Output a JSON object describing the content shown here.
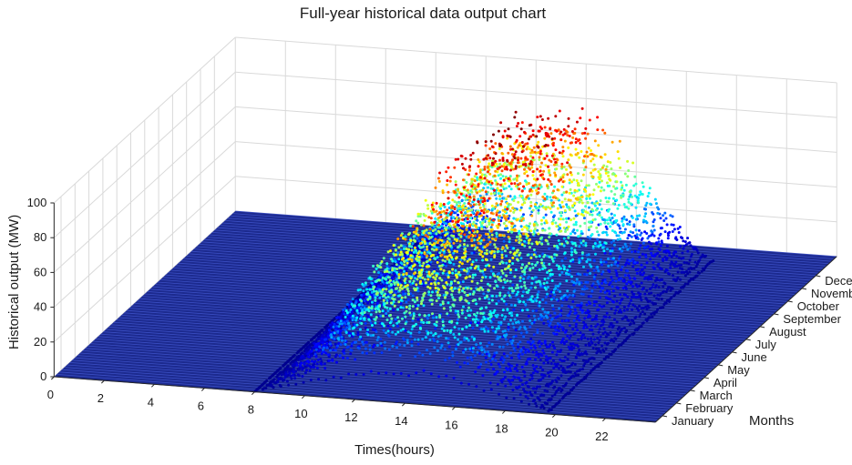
{
  "chart_data": {
    "type": "scatter",
    "title": "Full-year historical data output chart",
    "xlabel": "Times(hours)",
    "ylabel": "Months",
    "zlabel": "Historical output (MW)",
    "x_ticks": [
      "0",
      "2",
      "4",
      "6",
      "8",
      "10",
      "12",
      "14",
      "16",
      "18",
      "20",
      "22"
    ],
    "y_ticks": [
      "January",
      "February",
      "March",
      "April",
      "May",
      "June",
      "July",
      "August",
      "September",
      "October",
      "November",
      "December"
    ],
    "z_ticks": [
      "0",
      "20",
      "40",
      "60",
      "80",
      "100"
    ],
    "xlim": [
      0,
      24
    ],
    "zlim": [
      0,
      100
    ],
    "grid": true,
    "colormap": "jet",
    "colormap_stops": [
      "#00008f",
      "#0000ff",
      "#00ffff",
      "#ffff00",
      "#ff0000",
      "#800000"
    ],
    "profile": {
      "sunrise_hour": 8,
      "peak_hour": 14.5,
      "sunset_hour": 20,
      "peak_output_by_month": [
        55,
        60,
        68,
        75,
        82,
        88,
        92,
        95,
        94,
        90,
        84,
        78
      ]
    }
  }
}
